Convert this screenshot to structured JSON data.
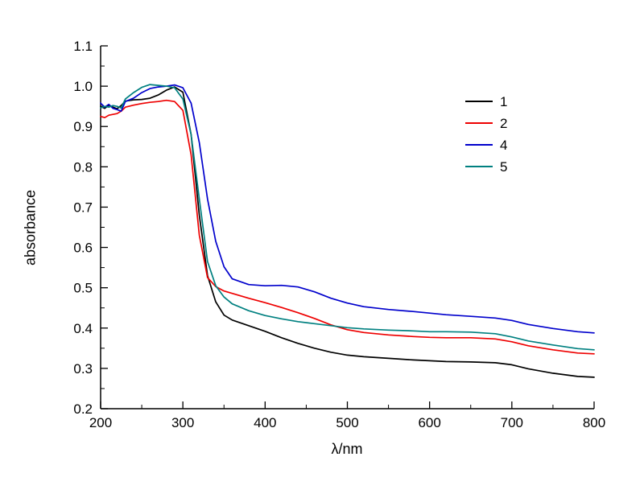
{
  "figure": {
    "background": "#ffffff",
    "text_color": "#000000"
  },
  "chart_data": {
    "type": "line",
    "title": "",
    "xlabel": "λ/nm",
    "ylabel": "absorbance",
    "xlim": [
      200,
      800
    ],
    "ylim": [
      0.2,
      1.1
    ],
    "x_major_ticks": [
      200,
      300,
      400,
      500,
      600,
      700,
      800
    ],
    "x_minor_step": 50,
    "y_major_ticks": [
      0.2,
      0.3,
      0.4,
      0.5,
      0.6,
      0.7,
      0.8,
      0.9,
      1.0,
      1.1
    ],
    "y_minor_step": 0.05,
    "grid": false,
    "legend_position": "upper-right-inside",
    "x": [
      200,
      205,
      210,
      215,
      220,
      225,
      230,
      240,
      250,
      260,
      270,
      280,
      290,
      300,
      310,
      320,
      330,
      340,
      350,
      360,
      380,
      400,
      420,
      440,
      460,
      480,
      500,
      520,
      550,
      580,
      600,
      620,
      650,
      680,
      700,
      720,
      750,
      780,
      800
    ],
    "series": [
      {
        "name": "1",
        "color": "#000000",
        "values": [
          0.95,
          0.945,
          0.953,
          0.948,
          0.944,
          0.952,
          0.963,
          0.966,
          0.967,
          0.97,
          0.978,
          0.99,
          0.998,
          0.985,
          0.88,
          0.68,
          0.53,
          0.465,
          0.432,
          0.42,
          0.406,
          0.392,
          0.376,
          0.362,
          0.35,
          0.34,
          0.333,
          0.329,
          0.325,
          0.321,
          0.319,
          0.317,
          0.316,
          0.314,
          0.309,
          0.299,
          0.288,
          0.28,
          0.278
        ]
      },
      {
        "name": "2",
        "color": "#ee0000",
        "values": [
          0.925,
          0.922,
          0.928,
          0.93,
          0.932,
          0.938,
          0.948,
          0.953,
          0.957,
          0.96,
          0.962,
          0.965,
          0.962,
          0.94,
          0.83,
          0.63,
          0.525,
          0.503,
          0.492,
          0.486,
          0.474,
          0.463,
          0.451,
          0.438,
          0.424,
          0.408,
          0.396,
          0.389,
          0.383,
          0.379,
          0.377,
          0.376,
          0.376,
          0.373,
          0.366,
          0.356,
          0.346,
          0.338,
          0.336
        ]
      },
      {
        "name": "4",
        "color": "#0000cc",
        "values": [
          0.958,
          0.948,
          0.955,
          0.945,
          0.942,
          0.938,
          0.962,
          0.97,
          0.984,
          0.994,
          0.998,
          1.0,
          1.003,
          0.996,
          0.958,
          0.86,
          0.72,
          0.615,
          0.552,
          0.522,
          0.508,
          0.505,
          0.506,
          0.502,
          0.49,
          0.474,
          0.462,
          0.453,
          0.446,
          0.441,
          0.437,
          0.433,
          0.429,
          0.425,
          0.419,
          0.409,
          0.399,
          0.391,
          0.388
        ]
      },
      {
        "name": "5",
        "color": "#008080",
        "values": [
          0.946,
          0.95,
          0.948,
          0.952,
          0.95,
          0.946,
          0.968,
          0.984,
          0.997,
          1.004,
          1.002,
          1.0,
          0.996,
          0.968,
          0.88,
          0.72,
          0.565,
          0.505,
          0.477,
          0.46,
          0.443,
          0.431,
          0.423,
          0.416,
          0.411,
          0.406,
          0.401,
          0.398,
          0.395,
          0.393,
          0.391,
          0.391,
          0.39,
          0.386,
          0.378,
          0.368,
          0.358,
          0.349,
          0.346
        ]
      }
    ]
  }
}
